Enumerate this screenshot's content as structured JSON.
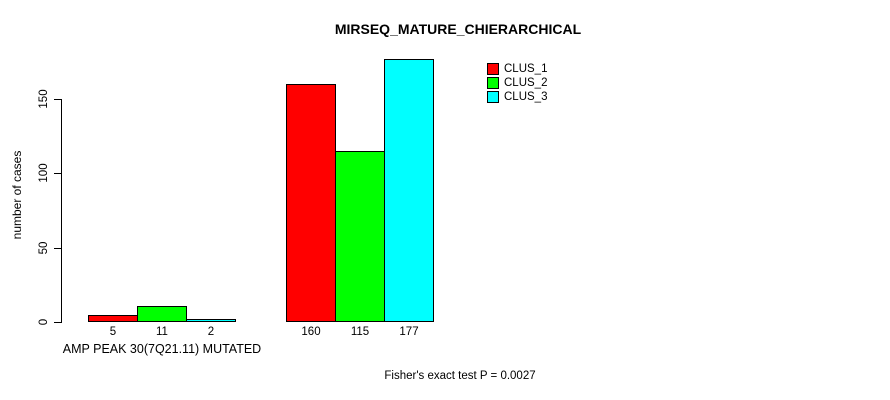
{
  "chart_data": {
    "type": "bar",
    "title": "MIRSEQ_MATURE_CHIERARCHICAL",
    "ylabel": "number of cases",
    "xlabel": "",
    "ylim": [
      0,
      177
    ],
    "yticks": [
      0,
      50,
      100,
      150
    ],
    "grid": false,
    "legend_position": "top-right",
    "categories": [
      "AMP PEAK 30(7Q21.11) MUTATED",
      ""
    ],
    "series": [
      {
        "name": "CLUS_1",
        "color": "#FF0000",
        "values": [
          5,
          160
        ]
      },
      {
        "name": "CLUS_2",
        "color": "#00FF00",
        "values": [
          11,
          115
        ]
      },
      {
        "name": "CLUS_3",
        "color": "#00FFFF",
        "values": [
          2,
          177
        ]
      }
    ],
    "annotation": "Fisher's exact test P = 0.0027"
  }
}
